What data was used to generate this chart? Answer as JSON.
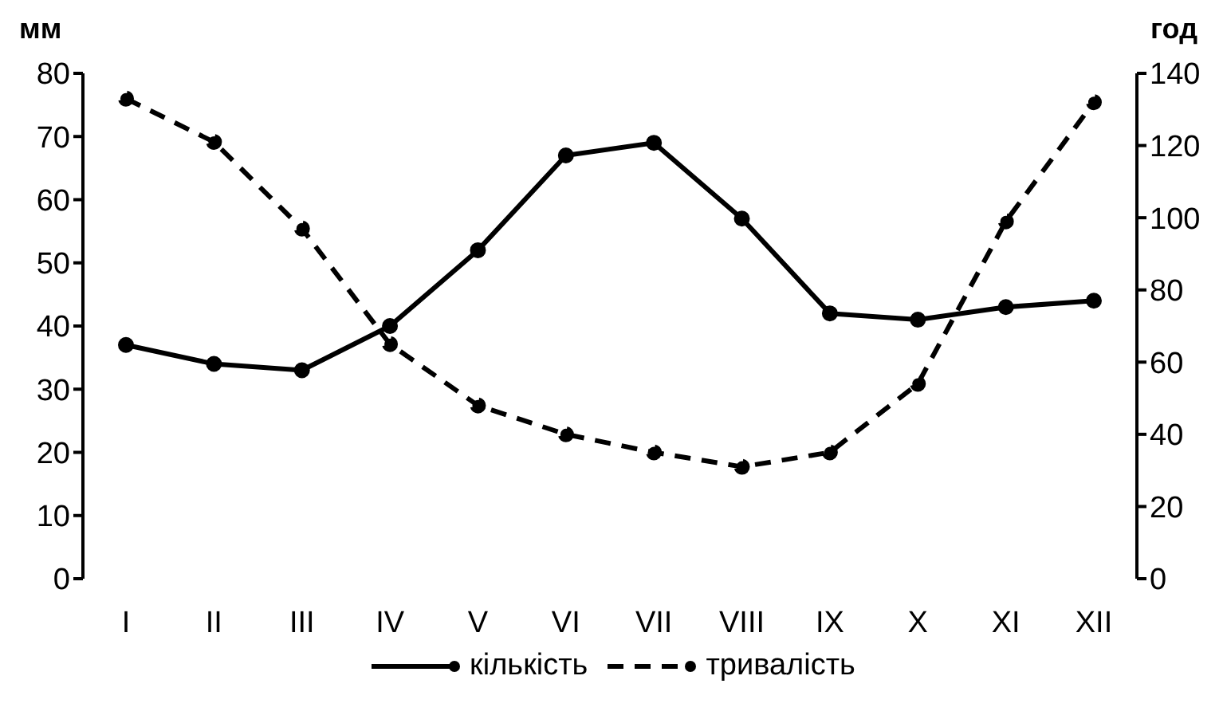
{
  "chart_data": {
    "type": "line",
    "ylabel": "мм",
    "y2label": "год",
    "categories": [
      "I",
      "II",
      "III",
      "IV",
      "V",
      "VI",
      "VII",
      "VIII",
      "IX",
      "X",
      "XI",
      "XII"
    ],
    "series": [
      {
        "name": "кількість",
        "color": "#000000",
        "line_style": "solid",
        "values": [
          37,
          34,
          33,
          40,
          52,
          67,
          69,
          57,
          42,
          41,
          43,
          44
        ]
      },
      {
        "name": "тривалість",
        "color": "#000000",
        "line_style": "dashed",
        "axis": "y2",
        "values": [
          133,
          121,
          97,
          65,
          48,
          40,
          35,
          31,
          35,
          54,
          99,
          132
        ]
      }
    ],
    "ylim": [
      0,
      80
    ],
    "yticks": [
      0,
      10,
      20,
      30,
      40,
      50,
      60,
      70,
      80
    ],
    "y2lim": [
      0,
      140
    ],
    "y2ticks": [
      0,
      20,
      40,
      60,
      80,
      100,
      120,
      140
    ],
    "marker": "circle",
    "grid": false,
    "legend": "bottom"
  }
}
